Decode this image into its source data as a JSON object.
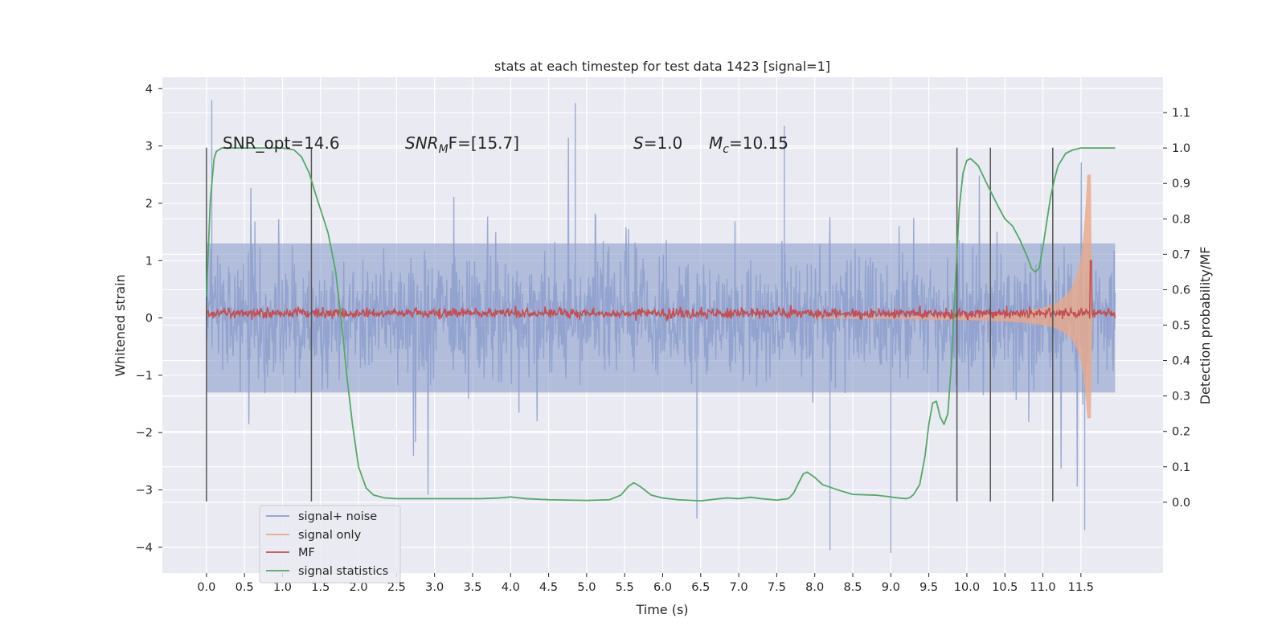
{
  "chart_data": {
    "type": "line",
    "title": "stats at each timestep for test data 1423 [signal=1]",
    "xlabel": "Time (s)",
    "ylabel": "Whitened strain",
    "ylabel_right": "Detection probability/MF",
    "xlim": [
      -0.58,
      12.58
    ],
    "ylim": [
      -4.45,
      4.2
    ],
    "ylim_right": [
      -0.2,
      1.2
    ],
    "x_ticks": [
      "0.0",
      "0.5",
      "1.0",
      "1.5",
      "2.0",
      "2.5",
      "3.0",
      "3.5",
      "4.0",
      "4.5",
      "5.0",
      "5.5",
      "6.0",
      "6.5",
      "7.0",
      "7.5",
      "8.0",
      "8.5",
      "9.0",
      "9.5",
      "10.0",
      "10.5",
      "11.0",
      "11.5"
    ],
    "y_ticks": [
      "4",
      "3",
      "2",
      "1",
      "0",
      "−1",
      "−2",
      "−3",
      "−4"
    ],
    "y_ticks_right": [
      "1.1",
      "1.0",
      "0.9",
      "0.8",
      "0.7",
      "0.6",
      "0.5",
      "0.4",
      "0.3",
      "0.2",
      "0.1",
      "0.0"
    ],
    "grid": true,
    "legend_position": "lower-left",
    "annotations": {
      "snr_opt": "SNR_opt=14.6",
      "snr_mf_main": "SNR",
      "snr_mf_sub": "M",
      "snr_mf_rest": "F=[15.7]",
      "s_main": "S",
      "s_rest": "=1.0",
      "mc_main": "M",
      "mc_sub": "c",
      "mc_rest": "=10.15"
    },
    "vertical_lines_x": [
      0.0,
      1.38,
      9.87,
      10.31,
      11.13
    ],
    "series": [
      {
        "name": "signal+ noise",
        "color": "#8c9fcc",
        "x_range": [
          0.0,
          11.95
        ],
        "envelope_typical": [
          -1.3,
          1.3
        ],
        "peaks": [
          [
            0.07,
            3.8
          ],
          [
            4.85,
            3.75
          ],
          [
            7.6,
            3.35
          ],
          [
            6.45,
            -3.5
          ],
          [
            8.2,
            -4.05
          ],
          [
            9.0,
            -4.1
          ],
          [
            11.55,
            -3.7
          ]
        ]
      },
      {
        "name": "signal only",
        "color": "#e9a78a",
        "chirp": {
          "start_x": 8.0,
          "end_x": 11.65,
          "start_amp": 0.02,
          "peak_amp": 2.5,
          "peak_x": 11.63
        }
      },
      {
        "name": "MF",
        "color": "#c44e52",
        "axis": "left",
        "x_range": [
          0.0,
          11.95
        ],
        "mean": 0.08,
        "spike": [
          11.63,
          1.0
        ]
      },
      {
        "name": "signal statistics",
        "color": "#55a868",
        "axis": "right",
        "x": [
          0.0,
          0.05,
          0.1,
          0.13,
          0.2,
          0.4,
          0.6,
          0.8,
          1.0,
          1.15,
          1.25,
          1.35,
          1.45,
          1.6,
          1.7,
          1.78,
          1.85,
          1.92,
          2.0,
          2.1,
          2.2,
          2.35,
          2.5,
          2.8,
          3.2,
          3.6,
          3.85,
          4.0,
          4.2,
          4.5,
          5.0,
          5.3,
          5.45,
          5.55,
          5.62,
          5.7,
          5.85,
          6.0,
          6.2,
          6.5,
          6.75,
          6.85,
          7.0,
          7.15,
          7.3,
          7.5,
          7.65,
          7.72,
          7.8,
          7.85,
          7.9,
          8.0,
          8.1,
          8.3,
          8.5,
          8.8,
          9.0,
          9.1,
          9.2,
          9.25,
          9.3,
          9.38,
          9.45,
          9.5,
          9.55,
          9.6,
          9.65,
          9.7,
          9.75,
          9.8,
          9.85,
          9.9,
          9.95,
          10.0,
          10.05,
          10.15,
          10.25,
          10.4,
          10.5,
          10.6,
          10.7,
          10.8,
          10.85,
          10.9,
          10.95,
          11.0,
          11.05,
          11.1,
          11.15,
          11.2,
          11.3,
          11.4,
          11.5,
          11.6,
          11.8,
          11.95
        ],
        "y": [
          0.58,
          0.85,
          0.97,
          0.99,
          1.0,
          1.0,
          1.0,
          1.0,
          1.0,
          0.995,
          0.975,
          0.93,
          0.86,
          0.76,
          0.65,
          0.5,
          0.35,
          0.22,
          0.1,
          0.04,
          0.02,
          0.012,
          0.01,
          0.01,
          0.01,
          0.01,
          0.012,
          0.015,
          0.01,
          0.007,
          0.005,
          0.007,
          0.02,
          0.045,
          0.055,
          0.045,
          0.02,
          0.012,
          0.007,
          0.004,
          0.01,
          0.012,
          0.01,
          0.014,
          0.01,
          0.006,
          0.01,
          0.025,
          0.06,
          0.08,
          0.085,
          0.07,
          0.05,
          0.035,
          0.022,
          0.02,
          0.015,
          0.012,
          0.01,
          0.013,
          0.022,
          0.05,
          0.13,
          0.22,
          0.28,
          0.285,
          0.24,
          0.22,
          0.25,
          0.4,
          0.62,
          0.83,
          0.93,
          0.965,
          0.97,
          0.95,
          0.905,
          0.84,
          0.8,
          0.78,
          0.74,
          0.69,
          0.66,
          0.65,
          0.66,
          0.72,
          0.79,
          0.86,
          0.91,
          0.95,
          0.985,
          0.995,
          1.0,
          1.0,
          1.0,
          1.0
        ]
      }
    ]
  }
}
